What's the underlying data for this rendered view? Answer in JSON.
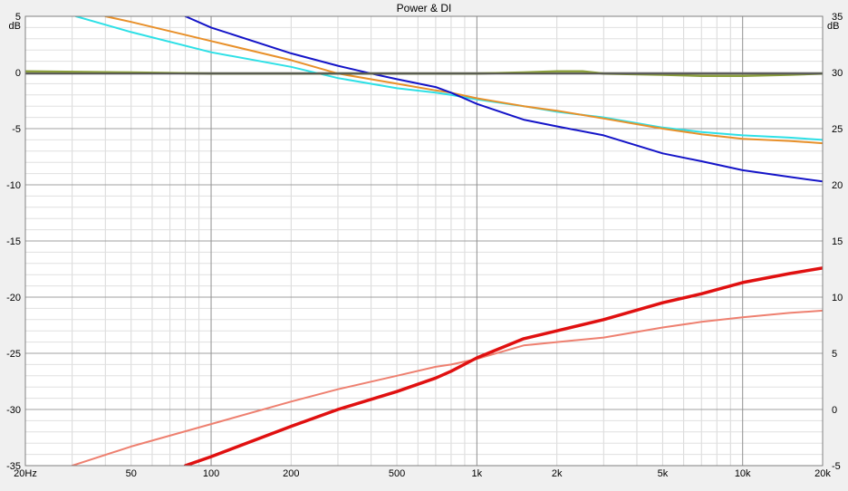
{
  "chart_data": {
    "type": "line",
    "title": "Power & DI",
    "x_scale": "log",
    "x_range": [
      20,
      20000
    ],
    "x_ticks": [
      {
        "v": 20,
        "label": "20Hz"
      },
      {
        "v": 50,
        "label": "50"
      },
      {
        "v": 100,
        "label": "100"
      },
      {
        "v": 200,
        "label": "200"
      },
      {
        "v": 500,
        "label": "500"
      },
      {
        "v": 1000,
        "label": "1k"
      },
      {
        "v": 2000,
        "label": "2k"
      },
      {
        "v": 5000,
        "label": "5k"
      },
      {
        "v": 10000,
        "label": "10k"
      },
      {
        "v": 20000,
        "label": "20k"
      }
    ],
    "major_x": [
      100,
      1000,
      10000
    ],
    "y_left": {
      "unit": "dB",
      "range": [
        -35,
        5
      ],
      "ticks": [
        5,
        0,
        -5,
        -10,
        -15,
        -20,
        -25,
        -30,
        -35
      ]
    },
    "y_right": {
      "unit": "dB",
      "range": [
        -5,
        35
      ],
      "ticks": [
        35,
        30,
        25,
        20,
        15,
        10,
        5,
        0,
        -5
      ]
    },
    "series": [
      {
        "color": "#2ee0e6",
        "width": 2,
        "axis": "left",
        "x": [
          31,
          50,
          100,
          200,
          300,
          500,
          700,
          800,
          1000,
          1500,
          2000,
          3000,
          5000,
          7000,
          10000,
          15000,
          20000
        ],
        "y": [
          5,
          3.6,
          1.8,
          0.5,
          -0.5,
          -1.4,
          -1.8,
          -2.0,
          -2.4,
          -3.0,
          -3.5,
          -4.0,
          -4.9,
          -5.3,
          -5.6,
          -5.8,
          -6.0
        ]
      },
      {
        "color": "#e8902a",
        "width": 2,
        "axis": "left",
        "x": [
          40,
          50,
          100,
          200,
          300,
          500,
          700,
          800,
          1000,
          1500,
          2000,
          3000,
          5000,
          7000,
          10000,
          15000,
          20000
        ],
        "y": [
          5,
          4.5,
          2.8,
          1.1,
          -0.1,
          -1.0,
          -1.6,
          -1.8,
          -2.3,
          -3.0,
          -3.4,
          -4.1,
          -5.0,
          -5.5,
          -5.9,
          -6.1,
          -6.3
        ]
      },
      {
        "color": "#1414c8",
        "width": 2,
        "axis": "left",
        "x": [
          80,
          100,
          200,
          300,
          400,
          500,
          700,
          800,
          1000,
          1500,
          2000,
          3000,
          5000,
          7000,
          10000,
          15000,
          20000
        ],
        "y": [
          5,
          4.0,
          1.7,
          0.6,
          -0.1,
          -0.6,
          -1.3,
          -1.8,
          -2.8,
          -4.2,
          -4.8,
          -5.6,
          -7.2,
          -7.9,
          -8.7,
          -9.3,
          -9.7
        ]
      },
      {
        "color": "#8a9e3c",
        "width": 2.5,
        "axis": "left",
        "x": [
          20,
          50,
          100,
          200,
          500,
          1000,
          1500,
          2000,
          2500,
          3000,
          5000,
          7000,
          10000,
          15000,
          20000
        ],
        "y": [
          0.1,
          0.0,
          -0.1,
          -0.1,
          -0.1,
          -0.1,
          0.0,
          0.1,
          0.1,
          -0.1,
          -0.2,
          -0.3,
          -0.3,
          -0.2,
          -0.1
        ]
      },
      {
        "color": "#555555",
        "width": 2,
        "axis": "left",
        "x": [
          20,
          20000
        ],
        "y": [
          -0.1,
          -0.1
        ]
      },
      {
        "color": "#ee8070",
        "width": 2,
        "axis": "right",
        "x": [
          30,
          50,
          100,
          200,
          300,
          500,
          700,
          800,
          1000,
          1500,
          2000,
          3000,
          5000,
          7000,
          10000,
          15000,
          20000
        ],
        "y": [
          -5,
          -3.3,
          -1.3,
          0.7,
          1.8,
          3.0,
          3.8,
          4.0,
          4.5,
          5.7,
          6.0,
          6.4,
          7.3,
          7.8,
          8.2,
          8.6,
          8.8
        ]
      },
      {
        "color": "#e01010",
        "width": 3.5,
        "axis": "right",
        "x": [
          80,
          100,
          200,
          300,
          500,
          700,
          800,
          1000,
          1500,
          2000,
          3000,
          5000,
          7000,
          10000,
          15000,
          20000
        ],
        "y": [
          -5,
          -4.2,
          -1.5,
          0.0,
          1.6,
          2.8,
          3.4,
          4.6,
          6.3,
          7.0,
          8.0,
          9.5,
          10.3,
          11.3,
          12.1,
          12.6
        ]
      }
    ]
  }
}
